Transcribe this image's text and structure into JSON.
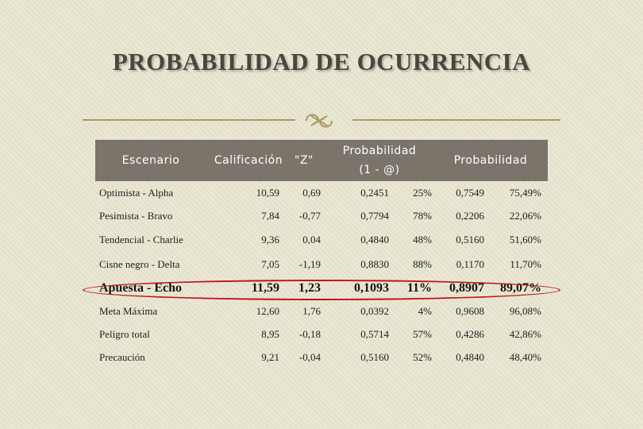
{
  "title": "PROBABILIDAD DE OCURRENCIA",
  "ornament_icon": "decorative-scroll-icon",
  "accent_color": "#c0141c",
  "header_color": "#7a746a",
  "table": {
    "headers": {
      "escenario": "Escenario",
      "calificacion": "Calificación",
      "z": "\"Z\"",
      "prob1_line1": "Probabilidad",
      "prob1_line2": "(1 - @)",
      "prob2": "Probabilidad"
    },
    "rows": [
      {
        "name": "Optimista - Alpha",
        "calif": "10,59",
        "z": "0,69",
        "p1": "0,2451",
        "p1pct": "25%",
        "p2": "0,7549",
        "p2pct": "75,49%"
      },
      {
        "name": "Pesimista - Bravo",
        "calif": "7,84",
        "z": "-0,77",
        "p1": "0,7794",
        "p1pct": "78%",
        "p2": "0,2206",
        "p2pct": "22,06%"
      },
      {
        "name": "Tendencial - Charlie",
        "calif": "9,36",
        "z": "0,04",
        "p1": "0,4840",
        "p1pct": "48%",
        "p2": "0,5160",
        "p2pct": "51,60%"
      },
      {
        "name": "Cisne negro - Delta",
        "calif": "7,05",
        "z": "-1,19",
        "p1": "0,8830",
        "p1pct": "88%",
        "p2": "0,1170",
        "p2pct": "11,70%"
      },
      {
        "name": "Apuesta - Echo",
        "calif": "11,59",
        "z": "1,23",
        "p1": "0,1093",
        "p1pct": "11%",
        "p2": "0,8907",
        "p2pct": "89,07%"
      },
      {
        "name": "Meta Máxima",
        "calif": "12,60",
        "z": "1,76",
        "p1": "0,0392",
        "p1pct": "4%",
        "p2": "0,9608",
        "p2pct": "96,08%"
      },
      {
        "name": "Peligro total",
        "calif": "8,95",
        "z": "-0,18",
        "p1": "0,5714",
        "p1pct": "57%",
        "p2": "0,4286",
        "p2pct": "42,86%"
      },
      {
        "name": "Precaución",
        "calif": "9,21",
        "z": "-0,04",
        "p1": "0,5160",
        "p1pct": "52%",
        "p2": "0,4840",
        "p2pct": "48,40%"
      }
    ]
  }
}
